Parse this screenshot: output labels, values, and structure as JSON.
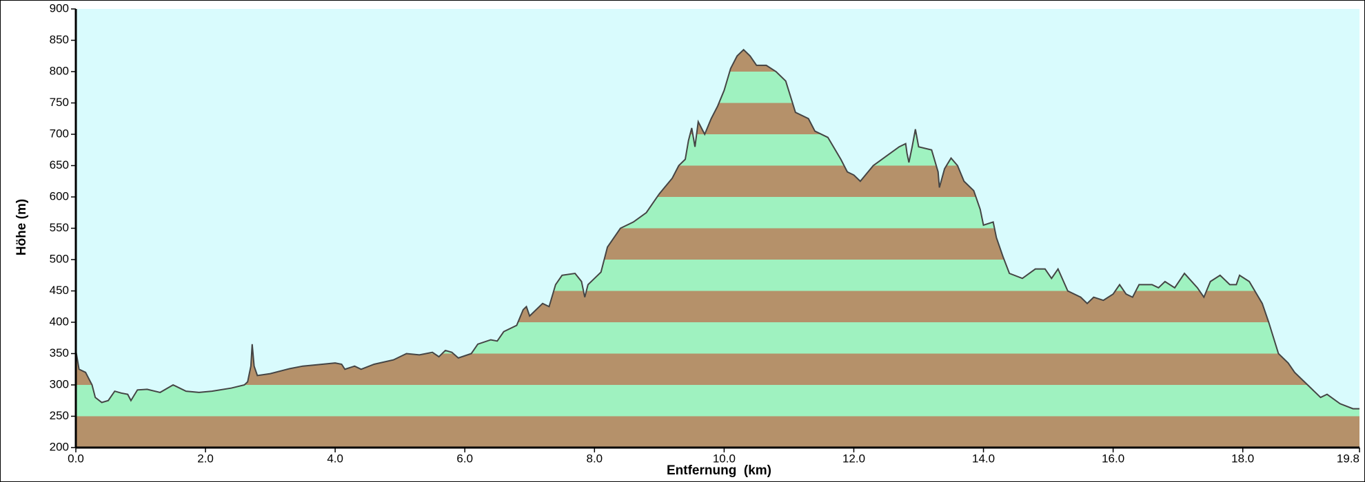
{
  "chart_data": {
    "type": "area",
    "x_label": "Entfernung  (km)",
    "y_label": "Höhe (m)",
    "x": [
      0.0,
      0.05,
      0.15,
      0.25,
      0.3,
      0.4,
      0.5,
      0.6,
      0.7,
      0.8,
      0.85,
      0.95,
      1.1,
      1.3,
      1.5,
      1.6,
      1.7,
      1.9,
      2.1,
      2.4,
      2.6,
      2.65,
      2.7,
      2.72,
      2.75,
      2.8,
      3.0,
      3.3,
      3.5,
      3.8,
      4.0,
      4.1,
      4.15,
      4.3,
      4.4,
      4.6,
      4.9,
      5.1,
      5.3,
      5.5,
      5.6,
      5.7,
      5.8,
      5.9,
      6.1,
      6.2,
      6.4,
      6.5,
      6.6,
      6.8,
      6.9,
      6.95,
      7.0,
      7.2,
      7.3,
      7.4,
      7.5,
      7.7,
      7.8,
      7.85,
      7.9,
      8.0,
      8.1,
      8.15,
      8.2,
      8.3,
      8.4,
      8.6,
      8.8,
      8.9,
      9.0,
      9.2,
      9.3,
      9.4,
      9.45,
      9.5,
      9.55,
      9.6,
      9.7,
      9.8,
      9.9,
      10.0,
      10.1,
      10.2,
      10.3,
      10.4,
      10.5,
      10.65,
      10.8,
      10.95,
      11.1,
      11.3,
      11.4,
      11.6,
      11.8,
      11.9,
      12.0,
      12.1,
      12.3,
      12.5,
      12.7,
      12.8,
      12.82,
      12.85,
      12.9,
      12.95,
      13.0,
      13.2,
      13.3,
      13.32,
      13.4,
      13.5,
      13.6,
      13.7,
      13.85,
      13.95,
      14.0,
      14.15,
      14.2,
      14.3,
      14.4,
      14.6,
      14.8,
      14.95,
      15.05,
      15.15,
      15.3,
      15.5,
      15.6,
      15.7,
      15.85,
      16.0,
      16.1,
      16.2,
      16.3,
      16.4,
      16.6,
      16.7,
      16.8,
      16.95,
      17.1,
      17.3,
      17.4,
      17.5,
      17.65,
      17.8,
      17.9,
      17.95,
      18.1,
      18.3,
      18.4,
      18.55,
      18.7,
      18.8,
      19.0,
      19.2,
      19.3,
      19.5,
      19.7,
      19.8
    ],
    "values": [
      355,
      325,
      320,
      300,
      280,
      272,
      275,
      290,
      287,
      285,
      275,
      292,
      293,
      288,
      300,
      295,
      290,
      288,
      290,
      295,
      300,
      305,
      330,
      365,
      330,
      315,
      318,
      326,
      330,
      333,
      335,
      333,
      325,
      330,
      325,
      333,
      340,
      350,
      348,
      352,
      345,
      355,
      352,
      343,
      350,
      365,
      372,
      370,
      385,
      395,
      420,
      425,
      410,
      430,
      425,
      460,
      475,
      478,
      465,
      440,
      460,
      470,
      480,
      500,
      520,
      535,
      550,
      560,
      575,
      590,
      605,
      630,
      650,
      660,
      690,
      710,
      680,
      720,
      700,
      725,
      745,
      770,
      805,
      825,
      835,
      825,
      810,
      810,
      800,
      785,
      735,
      725,
      705,
      695,
      660,
      640,
      635,
      625,
      650,
      665,
      680,
      685,
      670,
      655,
      680,
      708,
      680,
      675,
      640,
      615,
      645,
      662,
      650,
      625,
      610,
      580,
      555,
      560,
      535,
      505,
      478,
      470,
      485,
      485,
      470,
      485,
      450,
      440,
      430,
      440,
      435,
      445,
      460,
      445,
      440,
      460,
      460,
      455,
      465,
      455,
      478,
      455,
      440,
      465,
      475,
      460,
      460,
      475,
      465,
      430,
      400,
      350,
      335,
      320,
      300,
      280,
      285,
      270,
      262,
      262
    ],
    "color": "#444444",
    "background": "#d9fbfd",
    "band_colors": [
      "#b5916a",
      "#9ff2c0"
    ],
    "xlim": [
      0,
      19.8
    ],
    "ylim": [
      200,
      900
    ],
    "xticks": [
      {
        "value": 0,
        "label": "0.0"
      },
      {
        "value": 2,
        "label": "2.0"
      },
      {
        "value": 4,
        "label": "4.0"
      },
      {
        "value": 6,
        "label": "6.0"
      },
      {
        "value": 8,
        "label": "8.0"
      },
      {
        "value": 10,
        "label": "10.0"
      },
      {
        "value": 12,
        "label": "12.0"
      },
      {
        "value": 14,
        "label": "14.0"
      },
      {
        "value": 16,
        "label": "16.0"
      },
      {
        "value": 18,
        "label": "18.0"
      },
      {
        "value": 19.8,
        "label": "19.8"
      }
    ],
    "yticks": [
      200,
      250,
      300,
      350,
      400,
      450,
      500,
      550,
      600,
      650,
      700,
      750,
      800,
      850,
      900
    ]
  }
}
